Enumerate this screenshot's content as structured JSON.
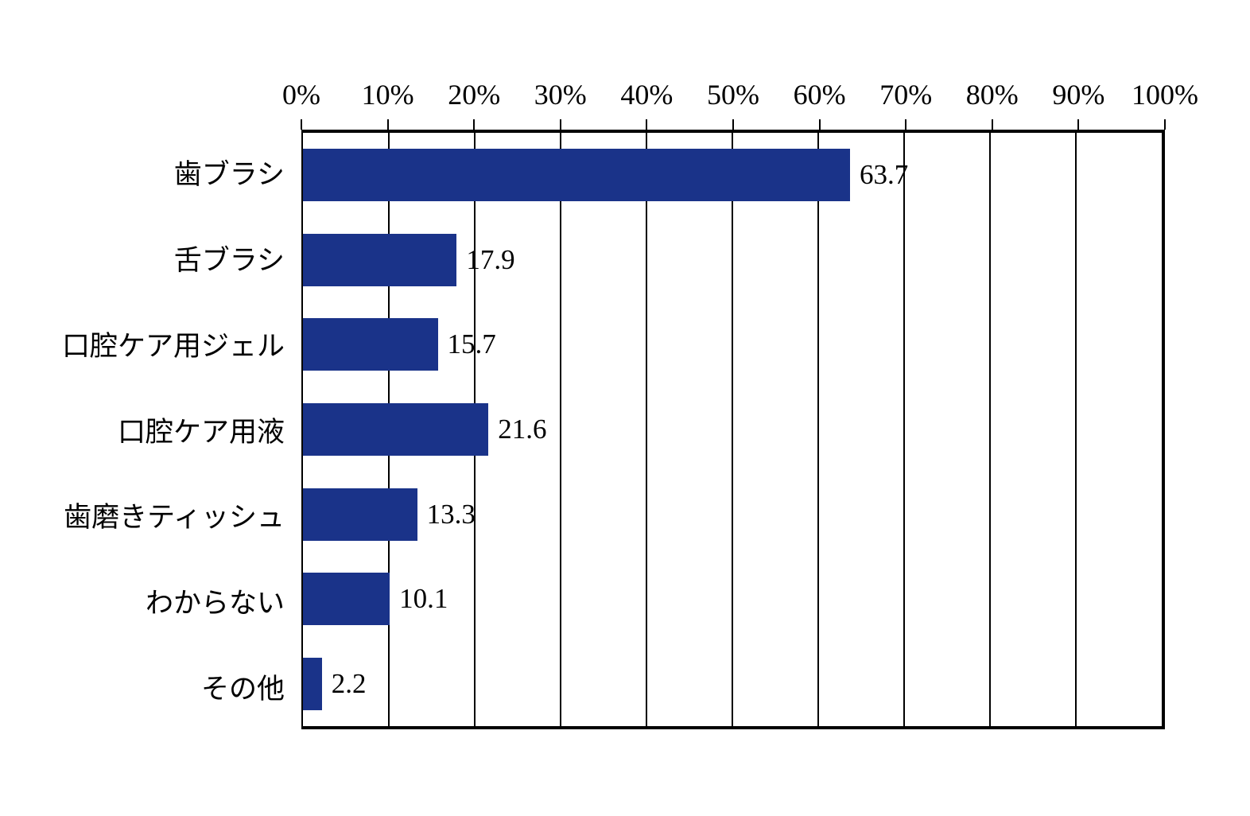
{
  "chart_data": {
    "type": "bar",
    "orientation": "horizontal",
    "title": "",
    "categories": [
      "歯ブラシ",
      "舌ブラシ",
      "口腔ケア用ジェル",
      "口腔ケア用液",
      "歯磨きティッシュ",
      "わからない",
      "その他"
    ],
    "values": [
      63.7,
      17.9,
      15.7,
      21.6,
      13.3,
      10.1,
      2.2
    ],
    "value_labels": [
      "63.7",
      "17.9",
      "15.7",
      "21.6",
      "13.3",
      "10.1",
      "2.2"
    ],
    "x_axis": {
      "position": "top",
      "min": 0,
      "max": 100,
      "tick_step": 10,
      "tick_labels": [
        "0%",
        "10%",
        "20%",
        "30%",
        "40%",
        "50%",
        "60%",
        "70%",
        "80%",
        "90%",
        "100%"
      ]
    },
    "grid": true,
    "legend": "none",
    "bar_color": "#1A3389",
    "axis_color": "#000000",
    "background_color": "#FFFFFF"
  }
}
